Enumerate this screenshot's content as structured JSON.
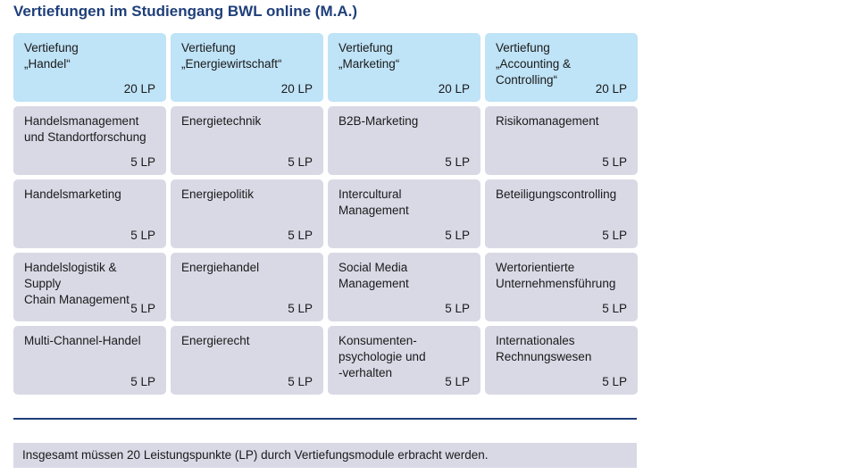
{
  "title": "Vertiefungen im Studiengang BWL online (M.A.)",
  "columns": [
    {
      "header": {
        "name": "Vertiefung\n„Handel“",
        "lp": "20 LP"
      },
      "modules": [
        {
          "name": "Handelsmanagement\nund Standortforschung",
          "lp": "5 LP"
        },
        {
          "name": "Handelsmarketing",
          "lp": "5 LP"
        },
        {
          "name": "Handelslogistik & Supply\nChain Management",
          "lp": "5 LP"
        },
        {
          "name": "Multi-Channel-Handel",
          "lp": "5 LP"
        }
      ]
    },
    {
      "header": {
        "name": "Vertiefung\n„Energiewirtschaft“",
        "lp": "20 LP"
      },
      "modules": [
        {
          "name": "Energietechnik",
          "lp": "5 LP"
        },
        {
          "name": "Energiepolitik",
          "lp": "5 LP"
        },
        {
          "name": "Energiehandel",
          "lp": "5 LP"
        },
        {
          "name": "Energierecht",
          "lp": "5 LP"
        }
      ]
    },
    {
      "header": {
        "name": "Vertiefung\n„Marketing“",
        "lp": "20 LP"
      },
      "modules": [
        {
          "name": "B2B-Marketing",
          "lp": "5 LP"
        },
        {
          "name": "Intercultural\nManagement",
          "lp": "5 LP"
        },
        {
          "name": "Social Media\nManagement",
          "lp": "5 LP"
        },
        {
          "name": "Konsumenten-\npsychologie und\n-verhalten",
          "lp": "5 LP"
        }
      ]
    },
    {
      "header": {
        "name": "Vertiefung\n„Accounting &\nControlling“",
        "lp": "20 LP"
      },
      "modules": [
        {
          "name": "Risikomanagement",
          "lp": "5 LP"
        },
        {
          "name": "Beteiligungscontrolling",
          "lp": "5 LP"
        },
        {
          "name": "Wertorientierte\nUnternehmensführung",
          "lp": "5 LP"
        },
        {
          "name": "Internationales\nRechnungswesen",
          "lp": "5 LP"
        }
      ]
    }
  ],
  "footer_note": "Insgesamt müssen 20 Leistungspunkte (LP) durch Vertiefungsmodule erbracht werden.",
  "colors": {
    "title": "#1f3f7a",
    "header_card": "#bfe3f7",
    "module_card": "#d9d9e6",
    "rule": "#1f3f7a"
  }
}
